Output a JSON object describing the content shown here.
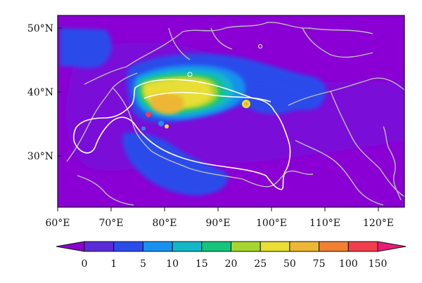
{
  "map": {
    "lat_labels": [
      "50°N",
      "40°N",
      "30°N"
    ],
    "lon_labels": [
      "60°E",
      "70°E",
      "80°E",
      "90°E",
      "100°E",
      "110°E",
      "120°E"
    ],
    "lon_range": [
      60,
      125
    ],
    "lat_range": [
      22,
      53
    ],
    "ocean_color": "#8a00d4",
    "border_color": "#bdbdbd",
    "plateau_outline_color": "#ffffff"
  },
  "colorbar": {
    "tick_labels": [
      "0",
      "1",
      "5",
      "10",
      "15",
      "20",
      "25",
      "50",
      "75",
      "100",
      "150"
    ],
    "colors": [
      "#8b00cf",
      "#5a2bd9",
      "#2b4bea",
      "#1891ee",
      "#12b8c8",
      "#16c47c",
      "#a6d62d",
      "#e8de35",
      "#edb634",
      "#f08032",
      "#f23d4c",
      "#ec1a78"
    ],
    "extend": "both"
  }
}
